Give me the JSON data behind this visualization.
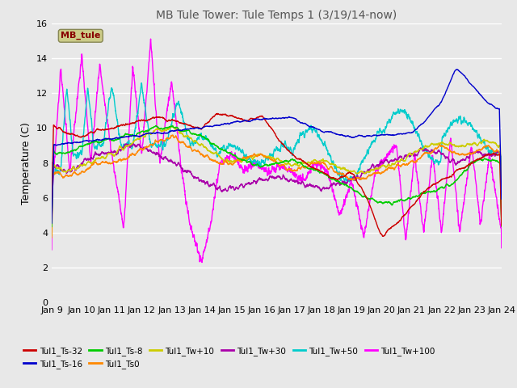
{
  "title": "MB Tule Tower: Tule Temps 1 (3/19/14-now)",
  "ylabel": "Temperature (C)",
  "ylim": [
    0,
    16
  ],
  "yticks": [
    0,
    2,
    4,
    6,
    8,
    10,
    12,
    14,
    16
  ],
  "xlim": [
    0,
    15
  ],
  "xtick_labels": [
    "Jan 9",
    "Jan 10",
    "Jan 11",
    "Jan 12",
    "Jan 13",
    "Jan 14",
    "Jan 15",
    "Jan 16",
    "Jan 17",
    "Jan 18",
    "Jan 19",
    "Jan 20",
    "Jan 21",
    "Jan 22",
    "Jan 23",
    "Jan 24"
  ],
  "bg_color": "#e8e8e8",
  "plot_bg_color": "#e8e8e8",
  "grid_color": "#ffffff",
  "series_colors": {
    "Tul1_Ts-32": "#cc0000",
    "Tul1_Ts-16": "#0000cc",
    "Tul1_Ts-8": "#00cc00",
    "Tul1_Ts0": "#ff8800",
    "Tul1_Tw+10": "#cccc00",
    "Tul1_Tw+30": "#aa00aa",
    "Tul1_Tw+50": "#00cccc",
    "Tul1_Tw+100": "#ff00ff"
  },
  "legend_box_color": "#cccc88",
  "legend_box_text": "MB_tule",
  "legend_box_text_color": "#880000",
  "n_points": 3000,
  "title_fontsize": 10,
  "axis_fontsize": 8,
  "ylabel_fontsize": 9
}
